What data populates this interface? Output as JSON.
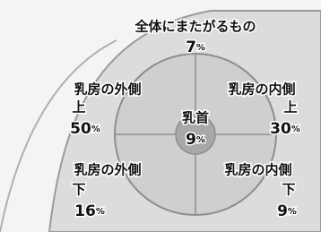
{
  "unit": "%",
  "regions": [
    {
      "lines": [
        "全体にまたがるもの"
      ],
      "value": "7"
    },
    {
      "lines": [
        "乳房の外側",
        "上"
      ],
      "value": "50"
    },
    {
      "lines": [
        "乳房の内側",
        "上"
      ],
      "value": "30"
    },
    {
      "lines": [
        "乳首"
      ],
      "value": "9"
    },
    {
      "lines": [
        "乳房の外側",
        "下"
      ],
      "value": "16"
    },
    {
      "lines": [
        "乳房の内側",
        "下"
      ],
      "value": "9"
    }
  ]
}
